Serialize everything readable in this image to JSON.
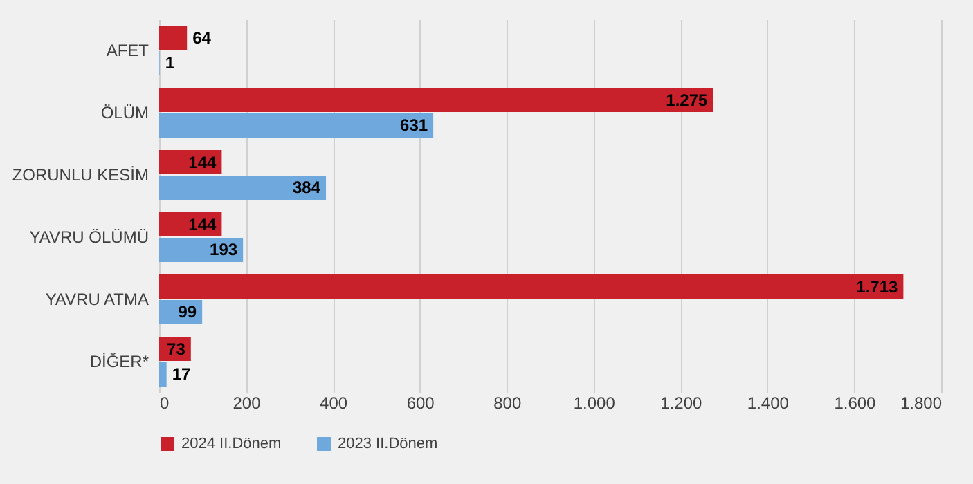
{
  "chart_data": {
    "type": "bar",
    "orientation": "horizontal",
    "categories": [
      "AFET",
      "ÖLÜM",
      "ZORUNLU KESİM",
      "YAVRU ÖLÜMÜ",
      "YAVRU ATMA",
      "DİĞER*"
    ],
    "series": [
      {
        "name": "2024 II.Dönem",
        "color": "#c9212b",
        "values": [
          64,
          1275,
          144,
          144,
          1713,
          73
        ],
        "value_labels": [
          "64",
          "1.275",
          "144",
          "144",
          "1.713",
          "73"
        ]
      },
      {
        "name": "2023 II.Dönem",
        "color": "#6fa8dc",
        "values": [
          1,
          631,
          384,
          193,
          99,
          17
        ],
        "value_labels": [
          "1",
          "631",
          "384",
          "193",
          "99",
          "17"
        ]
      }
    ],
    "xlim": [
      0,
      1800
    ],
    "xticks": [
      0,
      200,
      400,
      600,
      800,
      {
        "value": 1000,
        "label": "1.000"
      },
      {
        "value": 1200,
        "label": "1.200"
      },
      {
        "value": 1400,
        "label": "1.400"
      },
      {
        "value": 1600,
        "label": "1.600"
      },
      {
        "value": 1800,
        "label": "1.800"
      }
    ],
    "grid": "x",
    "legend": "bottom"
  }
}
